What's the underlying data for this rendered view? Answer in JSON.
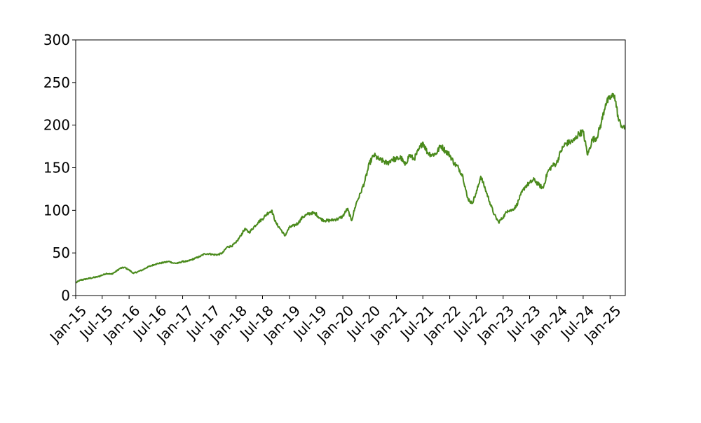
{
  "chart_data": {
    "type": "line",
    "title": "",
    "xlabel": "",
    "ylabel": "",
    "ylim": [
      0,
      300
    ],
    "xlim": [
      "2015-01-01",
      "2025-04-15"
    ],
    "grid": false,
    "legend": "none",
    "line_color": "#4a8a1c",
    "y_ticks": [
      0,
      50,
      100,
      150,
      200,
      250,
      300
    ],
    "x_ticks": [
      {
        "date": "2015-01-01",
        "label": "Jan-15"
      },
      {
        "date": "2015-07-01",
        "label": "Jul-15"
      },
      {
        "date": "2016-01-01",
        "label": "Jan-16"
      },
      {
        "date": "2016-07-01",
        "label": "Jul-16"
      },
      {
        "date": "2017-01-01",
        "label": "Jan-17"
      },
      {
        "date": "2017-07-01",
        "label": "Jul-17"
      },
      {
        "date": "2018-01-01",
        "label": "Jan-18"
      },
      {
        "date": "2018-07-01",
        "label": "Jul-18"
      },
      {
        "date": "2019-01-01",
        "label": "Jan-19"
      },
      {
        "date": "2019-07-01",
        "label": "Jul-19"
      },
      {
        "date": "2020-01-01",
        "label": "Jan-20"
      },
      {
        "date": "2020-07-01",
        "label": "Jul-20"
      },
      {
        "date": "2021-01-01",
        "label": "Jan-21"
      },
      {
        "date": "2021-07-01",
        "label": "Jul-21"
      },
      {
        "date": "2022-01-01",
        "label": "Jan-22"
      },
      {
        "date": "2022-07-01",
        "label": "Jul-22"
      },
      {
        "date": "2023-01-01",
        "label": "Jan-23"
      },
      {
        "date": "2023-07-01",
        "label": "Jul-23"
      },
      {
        "date": "2024-01-01",
        "label": "Jan-24"
      },
      {
        "date": "2024-07-01",
        "label": "Jul-24"
      },
      {
        "date": "2025-01-01",
        "label": "Jan-25"
      }
    ],
    "series": [
      {
        "points": [
          [
            "2015-01-02",
            15
          ],
          [
            "2015-02-01",
            18
          ],
          [
            "2015-03-01",
            19
          ],
          [
            "2015-04-01",
            20
          ],
          [
            "2015-05-01",
            21
          ],
          [
            "2015-06-01",
            22
          ],
          [
            "2015-07-01",
            24
          ],
          [
            "2015-08-01",
            26
          ],
          [
            "2015-09-01",
            25
          ],
          [
            "2015-10-01",
            28
          ],
          [
            "2015-11-01",
            32
          ],
          [
            "2015-12-01",
            33
          ],
          [
            "2016-01-01",
            30
          ],
          [
            "2016-02-01",
            26
          ],
          [
            "2016-03-01",
            28
          ],
          [
            "2016-04-01",
            30
          ],
          [
            "2016-05-01",
            33
          ],
          [
            "2016-06-01",
            35
          ],
          [
            "2016-07-01",
            37
          ],
          [
            "2016-08-01",
            38
          ],
          [
            "2016-09-01",
            39
          ],
          [
            "2016-10-01",
            40
          ],
          [
            "2016-11-01",
            38
          ],
          [
            "2016-12-01",
            38
          ],
          [
            "2017-01-01",
            40
          ],
          [
            "2017-02-01",
            40
          ],
          [
            "2017-03-01",
            42
          ],
          [
            "2017-04-01",
            44
          ],
          [
            "2017-05-01",
            46
          ],
          [
            "2017-06-01",
            49
          ],
          [
            "2017-07-01",
            49
          ],
          [
            "2017-08-01",
            48
          ],
          [
            "2017-09-01",
            48
          ],
          [
            "2017-10-01",
            50
          ],
          [
            "2017-11-01",
            57
          ],
          [
            "2017-12-01",
            58
          ],
          [
            "2018-01-01",
            62
          ],
          [
            "2018-02-01",
            70
          ],
          [
            "2018-03-01",
            78
          ],
          [
            "2018-04-01",
            74
          ],
          [
            "2018-05-01",
            80
          ],
          [
            "2018-06-01",
            86
          ],
          [
            "2018-07-01",
            90
          ],
          [
            "2018-08-01",
            96
          ],
          [
            "2018-09-01",
            100
          ],
          [
            "2018-10-01",
            85
          ],
          [
            "2018-11-01",
            78
          ],
          [
            "2018-12-01",
            70
          ],
          [
            "2019-01-01",
            80
          ],
          [
            "2019-02-01",
            82
          ],
          [
            "2019-03-01",
            85
          ],
          [
            "2019-04-01",
            92
          ],
          [
            "2019-05-01",
            95
          ],
          [
            "2019-06-01",
            97
          ],
          [
            "2019-07-01",
            96
          ],
          [
            "2019-08-01",
            90
          ],
          [
            "2019-09-01",
            88
          ],
          [
            "2019-10-01",
            88
          ],
          [
            "2019-11-01",
            89
          ],
          [
            "2019-12-01",
            90
          ],
          [
            "2020-01-01",
            93
          ],
          [
            "2020-02-01",
            102
          ],
          [
            "2020-03-01",
            88
          ],
          [
            "2020-04-01",
            108
          ],
          [
            "2020-05-01",
            120
          ],
          [
            "2020-06-01",
            135
          ],
          [
            "2020-07-01",
            155
          ],
          [
            "2020-08-01",
            165
          ],
          [
            "2020-09-01",
            160
          ],
          [
            "2020-10-01",
            158
          ],
          [
            "2020-11-01",
            155
          ],
          [
            "2020-12-01",
            160
          ],
          [
            "2021-01-01",
            160
          ],
          [
            "2021-02-01",
            162
          ],
          [
            "2021-03-01",
            153
          ],
          [
            "2021-04-01",
            165
          ],
          [
            "2021-05-01",
            160
          ],
          [
            "2021-06-01",
            170
          ],
          [
            "2021-07-01",
            180
          ],
          [
            "2021-08-01",
            168
          ],
          [
            "2021-09-01",
            165
          ],
          [
            "2021-10-01",
            167
          ],
          [
            "2021-11-01",
            176
          ],
          [
            "2021-12-01",
            170
          ],
          [
            "2022-01-01",
            165
          ],
          [
            "2022-02-01",
            155
          ],
          [
            "2022-03-01",
            150
          ],
          [
            "2022-04-01",
            140
          ],
          [
            "2022-05-01",
            115
          ],
          [
            "2022-06-01",
            108
          ],
          [
            "2022-07-01",
            120
          ],
          [
            "2022-08-01",
            140
          ],
          [
            "2022-09-01",
            125
          ],
          [
            "2022-10-01",
            110
          ],
          [
            "2022-11-01",
            95
          ],
          [
            "2022-12-01",
            86
          ],
          [
            "2023-01-01",
            92
          ],
          [
            "2023-02-01",
            100
          ],
          [
            "2023-03-01",
            100
          ],
          [
            "2023-04-01",
            105
          ],
          [
            "2023-05-01",
            118
          ],
          [
            "2023-06-01",
            128
          ],
          [
            "2023-07-01",
            132
          ],
          [
            "2023-08-01",
            136
          ],
          [
            "2023-09-01",
            130
          ],
          [
            "2023-10-01",
            126
          ],
          [
            "2023-11-01",
            145
          ],
          [
            "2023-12-01",
            152
          ],
          [
            "2024-01-01",
            155
          ],
          [
            "2024-02-01",
            170
          ],
          [
            "2024-03-01",
            178
          ],
          [
            "2024-04-01",
            180
          ],
          [
            "2024-05-01",
            182
          ],
          [
            "2024-06-01",
            190
          ],
          [
            "2024-07-01",
            192
          ],
          [
            "2024-08-01",
            165
          ],
          [
            "2024-09-01",
            183
          ],
          [
            "2024-10-01",
            185
          ],
          [
            "2024-11-01",
            202
          ],
          [
            "2024-12-01",
            225
          ],
          [
            "2025-01-01",
            232
          ],
          [
            "2025-02-01",
            235
          ],
          [
            "2025-03-01",
            205
          ],
          [
            "2025-04-10",
            195
          ]
        ]
      }
    ]
  }
}
